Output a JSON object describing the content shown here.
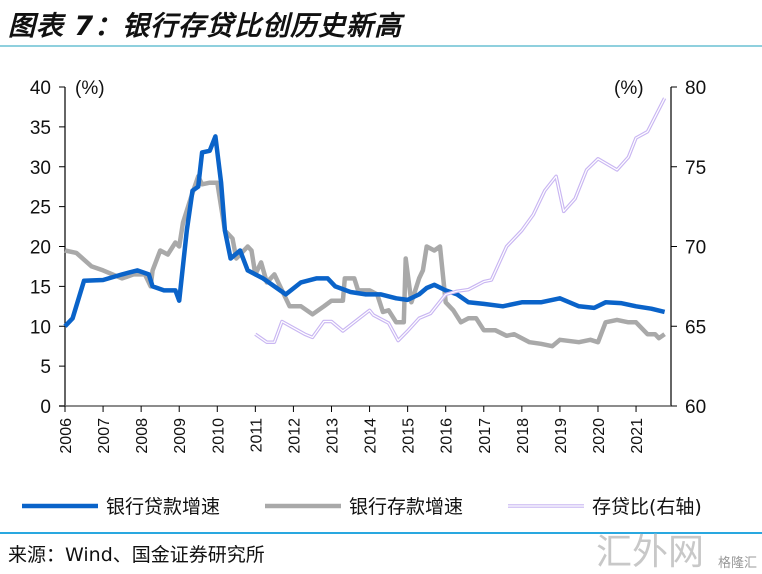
{
  "title": "图表 7：银行存贷比创历史新高",
  "source": "来源：Wind、国金证券研究所",
  "watermark": "汇外网",
  "watermark_sub": "格隆汇",
  "chart_data": {
    "type": "line",
    "title": "银行存贷比创历史新高",
    "left_axis": {
      "label": "(%)",
      "ylim": [
        0,
        40
      ],
      "ticks": [
        0,
        5,
        10,
        15,
        20,
        25,
        30,
        35,
        40
      ]
    },
    "right_axis": {
      "label": "(%)",
      "ylim": [
        60,
        80
      ],
      "ticks": [
        60,
        65,
        70,
        75,
        80
      ]
    },
    "x_ticks": [
      "2006",
      "2007",
      "2008",
      "2009",
      "2010",
      "2011",
      "2012",
      "2013",
      "2014",
      "2015",
      "2016",
      "2017",
      "2018",
      "2019",
      "2020",
      "2021"
    ],
    "xlim": [
      2006,
      2022
    ],
    "legend_position": "bottom",
    "colors": {
      "loan": "#0a63c9",
      "deposit": "#a9a9a9",
      "ldr": "#c9b6f2"
    },
    "series": [
      {
        "name": "银行贷款增速",
        "axis": "left",
        "points": [
          [
            2006.0,
            10
          ],
          [
            2006.2,
            11
          ],
          [
            2006.5,
            15.7
          ],
          [
            2007.0,
            15.8
          ],
          [
            2007.5,
            16.5
          ],
          [
            2007.9,
            17
          ],
          [
            2008.2,
            16.5
          ],
          [
            2008.3,
            15
          ],
          [
            2008.6,
            14.5
          ],
          [
            2008.9,
            14.5
          ],
          [
            2009.0,
            13.2
          ],
          [
            2009.2,
            22
          ],
          [
            2009.35,
            27
          ],
          [
            2009.5,
            27.5
          ],
          [
            2009.6,
            31.8
          ],
          [
            2009.8,
            32
          ],
          [
            2009.95,
            33.8
          ],
          [
            2010.1,
            28
          ],
          [
            2010.2,
            22
          ],
          [
            2010.35,
            18.5
          ],
          [
            2010.6,
            19.5
          ],
          [
            2010.8,
            17
          ],
          [
            2011.2,
            16
          ],
          [
            2011.5,
            15
          ],
          [
            2011.8,
            14
          ],
          [
            2012.2,
            15.5
          ],
          [
            2012.6,
            16
          ],
          [
            2012.9,
            16
          ],
          [
            2013.1,
            15
          ],
          [
            2013.5,
            14.3
          ],
          [
            2013.9,
            14
          ],
          [
            2014.3,
            14
          ],
          [
            2014.7,
            13.5
          ],
          [
            2015.0,
            13.3
          ],
          [
            2015.3,
            14
          ],
          [
            2015.5,
            14.8
          ],
          [
            2015.7,
            15.2
          ],
          [
            2016.0,
            14.5
          ],
          [
            2016.3,
            14
          ],
          [
            2016.6,
            13
          ],
          [
            2017.0,
            12.8
          ],
          [
            2017.5,
            12.5
          ],
          [
            2018.0,
            13
          ],
          [
            2018.5,
            13
          ],
          [
            2019.0,
            13.5
          ],
          [
            2019.5,
            12.5
          ],
          [
            2019.9,
            12.3
          ],
          [
            2020.2,
            13
          ],
          [
            2020.6,
            12.9
          ],
          [
            2021.0,
            12.5
          ],
          [
            2021.4,
            12.2
          ],
          [
            2021.75,
            11.8
          ]
        ]
      },
      {
        "name": "银行存款增速",
        "axis": "left",
        "points": [
          [
            2006.0,
            19.5
          ],
          [
            2006.3,
            19.2
          ],
          [
            2006.7,
            17.5
          ],
          [
            2007.0,
            17
          ],
          [
            2007.5,
            16
          ],
          [
            2007.8,
            16.5
          ],
          [
            2008.1,
            16.5
          ],
          [
            2008.25,
            15
          ],
          [
            2008.3,
            17
          ],
          [
            2008.5,
            19.5
          ],
          [
            2008.7,
            19
          ],
          [
            2008.9,
            20.5
          ],
          [
            2009.0,
            20
          ],
          [
            2009.1,
            23
          ],
          [
            2009.3,
            26
          ],
          [
            2009.5,
            28.8
          ],
          [
            2009.6,
            27.8
          ],
          [
            2009.8,
            28
          ],
          [
            2010.0,
            28
          ],
          [
            2010.1,
            25
          ],
          [
            2010.2,
            22
          ],
          [
            2010.4,
            21
          ],
          [
            2010.5,
            18.5
          ],
          [
            2010.8,
            20
          ],
          [
            2010.9,
            19.5
          ],
          [
            2011.0,
            16.5
          ],
          [
            2011.15,
            18
          ],
          [
            2011.3,
            15.5
          ],
          [
            2011.5,
            16.5
          ],
          [
            2011.7,
            14.5
          ],
          [
            2011.9,
            12.5
          ],
          [
            2012.2,
            12.5
          ],
          [
            2012.5,
            11.5
          ],
          [
            2012.8,
            12.5
          ],
          [
            2013.0,
            13.2
          ],
          [
            2013.3,
            13.2
          ],
          [
            2013.35,
            16
          ],
          [
            2013.6,
            16
          ],
          [
            2013.7,
            14.5
          ],
          [
            2014.0,
            14.5
          ],
          [
            2014.2,
            14
          ],
          [
            2014.35,
            11.8
          ],
          [
            2014.5,
            12
          ],
          [
            2014.7,
            10.5
          ],
          [
            2014.9,
            10.5
          ],
          [
            2014.95,
            18.5
          ],
          [
            2015.1,
            13
          ],
          [
            2015.3,
            16
          ],
          [
            2015.4,
            17
          ],
          [
            2015.5,
            20
          ],
          [
            2015.7,
            19.5
          ],
          [
            2015.85,
            20
          ],
          [
            2016.0,
            13
          ],
          [
            2016.2,
            12
          ],
          [
            2016.4,
            10.5
          ],
          [
            2016.6,
            11
          ],
          [
            2016.8,
            11
          ],
          [
            2017.0,
            9.5
          ],
          [
            2017.3,
            9.5
          ],
          [
            2017.6,
            8.8
          ],
          [
            2017.8,
            9
          ],
          [
            2018.2,
            8
          ],
          [
            2018.5,
            7.8
          ],
          [
            2018.8,
            7.5
          ],
          [
            2019.0,
            8.3
          ],
          [
            2019.5,
            8
          ],
          [
            2019.8,
            8.3
          ],
          [
            2020.0,
            8
          ],
          [
            2020.2,
            10.5
          ],
          [
            2020.5,
            10.8
          ],
          [
            2020.8,
            10.5
          ],
          [
            2021.0,
            10.5
          ],
          [
            2021.3,
            9
          ],
          [
            2021.5,
            9
          ],
          [
            2021.6,
            8.5
          ],
          [
            2021.75,
            9
          ]
        ]
      },
      {
        "name": "存贷比(右轴)",
        "axis": "right",
        "points": [
          [
            2011.0,
            64.5
          ],
          [
            2011.3,
            64
          ],
          [
            2011.5,
            64
          ],
          [
            2011.7,
            65.3
          ],
          [
            2012.3,
            64.5
          ],
          [
            2012.5,
            64.3
          ],
          [
            2012.8,
            65.3
          ],
          [
            2013.0,
            65.3
          ],
          [
            2013.3,
            64.7
          ],
          [
            2014.0,
            66.0
          ],
          [
            2014.1,
            65.7
          ],
          [
            2014.5,
            65.2
          ],
          [
            2014.75,
            64.1
          ],
          [
            2015.0,
            64.7
          ],
          [
            2015.3,
            65.5
          ],
          [
            2015.6,
            65.8
          ],
          [
            2016.0,
            67
          ],
          [
            2016.3,
            67.2
          ],
          [
            2016.6,
            67.3
          ],
          [
            2017.0,
            67.8
          ],
          [
            2017.2,
            67.9
          ],
          [
            2017.6,
            70
          ],
          [
            2018.0,
            71
          ],
          [
            2018.3,
            72
          ],
          [
            2018.6,
            73.5
          ],
          [
            2018.9,
            74.4
          ],
          [
            2019.1,
            72.2
          ],
          [
            2019.4,
            73
          ],
          [
            2019.7,
            74.8
          ],
          [
            2020.0,
            75.5
          ],
          [
            2020.5,
            74.8
          ],
          [
            2020.8,
            75.6
          ],
          [
            2021.0,
            76.8
          ],
          [
            2021.3,
            77.2
          ],
          [
            2021.75,
            79.3
          ]
        ]
      }
    ]
  }
}
